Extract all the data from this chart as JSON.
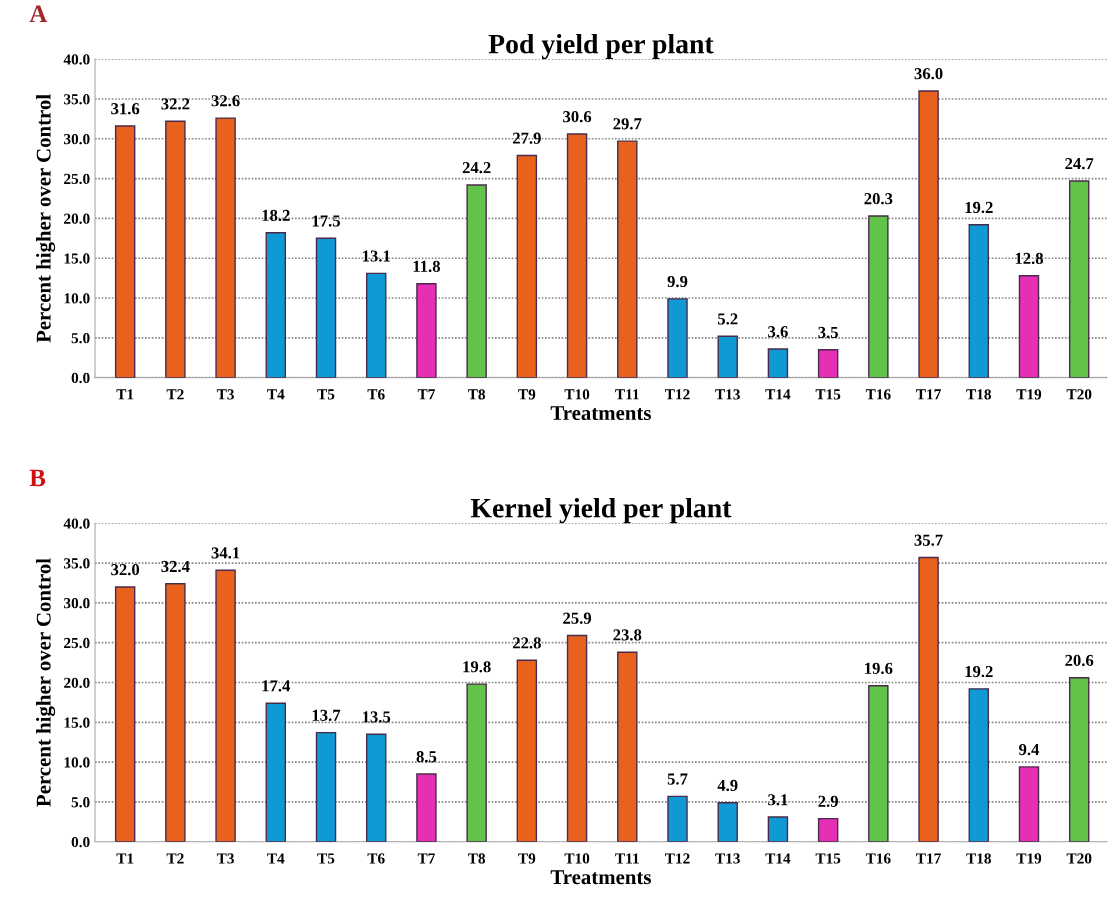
{
  "chart_data": [
    {
      "type": "bar",
      "title": "Pod yield per plant",
      "xlabel": "Treatments",
      "ylabel": "Percent higher over Control",
      "annotations": [
        "A"
      ],
      "categories": [
        "T1",
        "T2",
        "T3",
        "T4",
        "T5",
        "T6",
        "T7",
        "T8",
        "T9",
        "T10",
        "T11",
        "T12",
        "T13",
        "T14",
        "T15",
        "T16",
        "T17",
        "T18",
        "T19",
        "T20"
      ],
      "values": [
        31.6,
        32.2,
        32.6,
        18.2,
        17.5,
        13.1,
        11.8,
        24.2,
        27.9,
        30.6,
        29.7,
        9.9,
        5.2,
        3.6,
        3.5,
        20.3,
        36.0,
        19.2,
        12.8,
        24.7
      ],
      "value_labels": [
        "31.6",
        "32.2",
        "32.6",
        "18.2",
        "17.5",
        "13.1",
        "11.8",
        "24.2",
        "27.9",
        "30.6",
        "29.7",
        "9.9",
        "5.2",
        "3.6",
        "3.5",
        "20.3",
        "36.0",
        "19.2",
        "12.8",
        "24.7"
      ],
      "colors": [
        "#e8621e",
        "#e8621e",
        "#e8621e",
        "#0f9ad6",
        "#0f9ad6",
        "#0f9ad6",
        "#e52fb5",
        "#62c34a",
        "#e8621e",
        "#e8621e",
        "#e8621e",
        "#0f9ad6",
        "#0f9ad6",
        "#0f9ad6",
        "#e52fb5",
        "#62c34a",
        "#e8621e",
        "#0f9ad6",
        "#e52fb5",
        "#62c34a"
      ],
      "ylim": [
        0,
        40
      ],
      "yticks": [
        {
          "value": 0,
          "label": "0.0"
        },
        {
          "value": 5,
          "label": "5.0"
        },
        {
          "value": 10,
          "label": "10.0"
        },
        {
          "value": 15,
          "label": "15.0"
        },
        {
          "value": 20,
          "label": "20.0"
        },
        {
          "value": 25,
          "label": "25.0"
        },
        {
          "value": 30,
          "label": "30.0"
        },
        {
          "value": 35,
          "label": "35.0"
        },
        {
          "value": 40,
          "label": "40.0"
        }
      ],
      "grid": "y"
    },
    {
      "type": "bar",
      "title": "Kernel yield per plant",
      "xlabel": "Treatments",
      "ylabel": "Percent higher over Control",
      "annotations": [
        "B"
      ],
      "categories": [
        "T1",
        "T2",
        "T3",
        "T4",
        "T5",
        "T6",
        "T7",
        "T8",
        "T9",
        "T10",
        "T11",
        "T12",
        "T13",
        "T14",
        "T15",
        "T16",
        "T17",
        "T18",
        "T19",
        "T20"
      ],
      "values": [
        32.0,
        32.4,
        34.1,
        17.4,
        13.7,
        13.5,
        8.5,
        19.8,
        22.8,
        25.9,
        23.8,
        5.7,
        4.9,
        3.1,
        2.9,
        19.6,
        35.7,
        19.2,
        9.4,
        20.6
      ],
      "value_labels": [
        "32.0",
        "32.4",
        "34.1",
        "17.4",
        "13.7",
        "13.5",
        "8.5",
        "19.8",
        "22.8",
        "25.9",
        "23.8",
        "5.7",
        "4.9",
        "3.1",
        "2.9",
        "19.6",
        "35.7",
        "19.2",
        "9.4",
        "20.6"
      ],
      "colors": [
        "#e8621e",
        "#e8621e",
        "#e8621e",
        "#0f9ad6",
        "#0f9ad6",
        "#0f9ad6",
        "#e52fb5",
        "#62c34a",
        "#e8621e",
        "#e8621e",
        "#e8621e",
        "#0f9ad6",
        "#0f9ad6",
        "#0f9ad6",
        "#e52fb5",
        "#62c34a",
        "#e8621e",
        "#0f9ad6",
        "#e52fb5",
        "#62c34a"
      ],
      "ylim": [
        0,
        40
      ],
      "yticks": [
        {
          "value": 0,
          "label": "0.0"
        },
        {
          "value": 5,
          "label": "5.0"
        },
        {
          "value": 10,
          "label": "10.0"
        },
        {
          "value": 15,
          "label": "15.0"
        },
        {
          "value": 20,
          "label": "20.0"
        },
        {
          "value": 25,
          "label": "25.0"
        },
        {
          "value": 30,
          "label": "30.0"
        },
        {
          "value": 35,
          "label": "35.0"
        },
        {
          "value": 40,
          "label": "40.0"
        }
      ],
      "grid": "y"
    }
  ]
}
